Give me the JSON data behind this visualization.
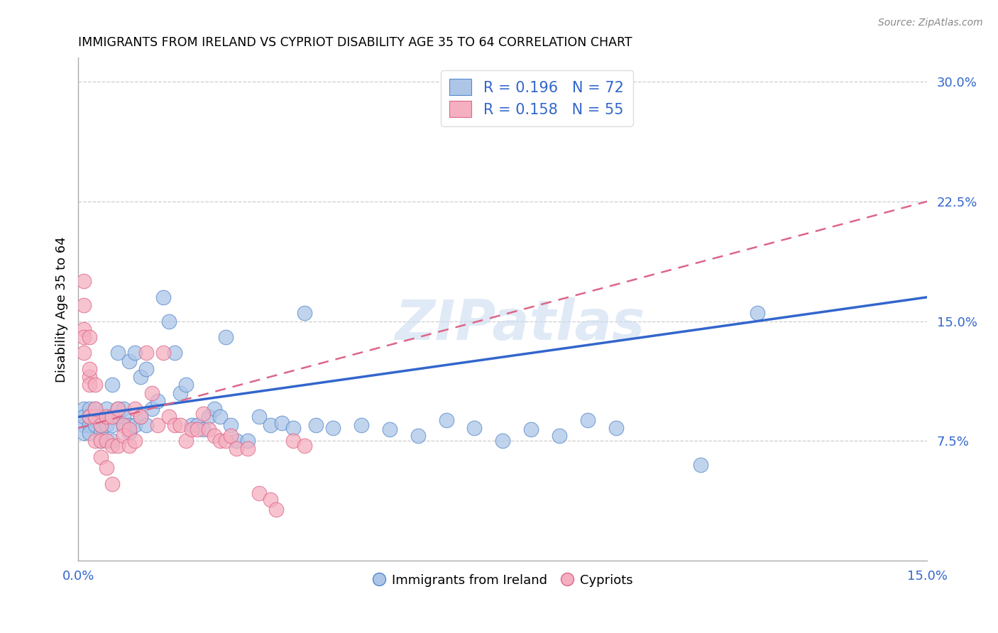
{
  "title": "IMMIGRANTS FROM IRELAND VS CYPRIOT DISABILITY AGE 35 TO 64 CORRELATION CHART",
  "source": "Source: ZipAtlas.com",
  "ylabel": "Disability Age 35 to 64",
  "y_ticks": [
    0.0,
    0.075,
    0.15,
    0.225,
    0.3
  ],
  "y_tick_labels": [
    "",
    "7.5%",
    "15.0%",
    "22.5%",
    "30.0%"
  ],
  "x_lim": [
    0.0,
    0.15
  ],
  "y_lim": [
    0.0,
    0.315
  ],
  "legend_label1": "Immigrants from Ireland",
  "legend_label2": "Cypriots",
  "color_blue": "#adc6e8",
  "color_pink": "#f5afc0",
  "edge_blue": "#5588cc",
  "edge_pink": "#dd6688",
  "trendline_blue": "#3366cc",
  "trendline_pink": "#dd6688",
  "watermark": "ZIPatlas",
  "blue_trendline_x0": 0.0,
  "blue_trendline_y0": 0.09,
  "blue_trendline_x1": 0.15,
  "blue_trendline_y1": 0.165,
  "pink_trendline_x0": 0.0,
  "pink_trendline_y0": 0.083,
  "pink_trendline_x1": 0.15,
  "pink_trendline_y1": 0.225,
  "blue_scatter_x": [
    0.001,
    0.001,
    0.001,
    0.001,
    0.002,
    0.002,
    0.002,
    0.002,
    0.003,
    0.003,
    0.003,
    0.004,
    0.004,
    0.004,
    0.004,
    0.005,
    0.005,
    0.005,
    0.006,
    0.006,
    0.006,
    0.007,
    0.007,
    0.007,
    0.008,
    0.008,
    0.008,
    0.009,
    0.009,
    0.009,
    0.01,
    0.01,
    0.011,
    0.011,
    0.012,
    0.012,
    0.013,
    0.014,
    0.015,
    0.016,
    0.017,
    0.018,
    0.019,
    0.02,
    0.021,
    0.022,
    0.023,
    0.024,
    0.025,
    0.026,
    0.027,
    0.028,
    0.03,
    0.032,
    0.034,
    0.036,
    0.038,
    0.04,
    0.042,
    0.045,
    0.05,
    0.055,
    0.06,
    0.065,
    0.07,
    0.075,
    0.08,
    0.085,
    0.09,
    0.095,
    0.11,
    0.12
  ],
  "blue_scatter_y": [
    0.095,
    0.085,
    0.09,
    0.08,
    0.095,
    0.085,
    0.09,
    0.08,
    0.085,
    0.09,
    0.095,
    0.08,
    0.085,
    0.09,
    0.075,
    0.085,
    0.09,
    0.095,
    0.075,
    0.085,
    0.11,
    0.095,
    0.09,
    0.13,
    0.095,
    0.085,
    0.09,
    0.085,
    0.08,
    0.125,
    0.085,
    0.13,
    0.09,
    0.115,
    0.085,
    0.12,
    0.095,
    0.1,
    0.165,
    0.15,
    0.13,
    0.105,
    0.11,
    0.085,
    0.085,
    0.082,
    0.09,
    0.095,
    0.09,
    0.14,
    0.085,
    0.075,
    0.075,
    0.09,
    0.085,
    0.086,
    0.083,
    0.155,
    0.085,
    0.083,
    0.085,
    0.082,
    0.078,
    0.088,
    0.083,
    0.075,
    0.082,
    0.078,
    0.088,
    0.083,
    0.06,
    0.155
  ],
  "pink_scatter_x": [
    0.001,
    0.001,
    0.001,
    0.001,
    0.001,
    0.002,
    0.002,
    0.002,
    0.002,
    0.002,
    0.003,
    0.003,
    0.003,
    0.003,
    0.004,
    0.004,
    0.004,
    0.005,
    0.005,
    0.005,
    0.006,
    0.006,
    0.006,
    0.007,
    0.007,
    0.008,
    0.008,
    0.009,
    0.009,
    0.01,
    0.01,
    0.011,
    0.012,
    0.013,
    0.014,
    0.015,
    0.016,
    0.017,
    0.018,
    0.019,
    0.02,
    0.021,
    0.022,
    0.023,
    0.024,
    0.025,
    0.026,
    0.027,
    0.028,
    0.03,
    0.032,
    0.034,
    0.035,
    0.038,
    0.04
  ],
  "pink_scatter_y": [
    0.145,
    0.14,
    0.13,
    0.16,
    0.175,
    0.115,
    0.09,
    0.14,
    0.12,
    0.11,
    0.09,
    0.075,
    0.095,
    0.11,
    0.085,
    0.075,
    0.065,
    0.09,
    0.075,
    0.058,
    0.09,
    0.072,
    0.048,
    0.095,
    0.072,
    0.085,
    0.078,
    0.082,
    0.072,
    0.095,
    0.075,
    0.09,
    0.13,
    0.105,
    0.085,
    0.13,
    0.09,
    0.085,
    0.085,
    0.075,
    0.082,
    0.082,
    0.092,
    0.082,
    0.078,
    0.075,
    0.075,
    0.078,
    0.07,
    0.07,
    0.042,
    0.038,
    0.032,
    0.075,
    0.072
  ]
}
